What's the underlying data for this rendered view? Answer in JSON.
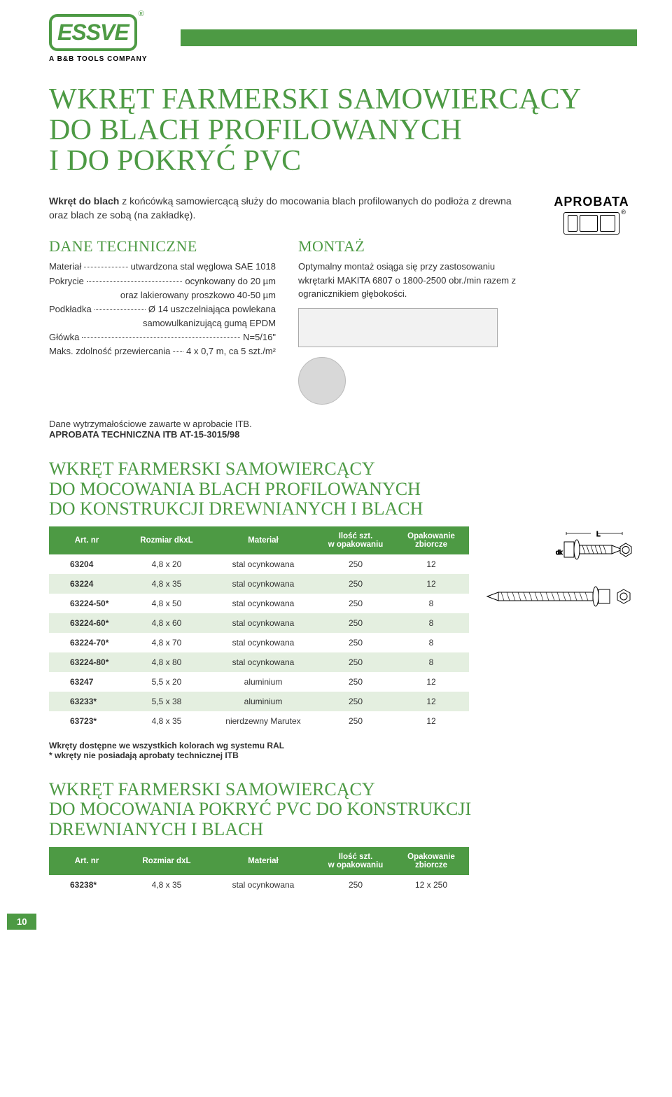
{
  "brand": {
    "logo_text": "ESSVE",
    "tagline": "A B&B TOOLS COMPANY"
  },
  "title_lines": [
    "WKRĘT FARMERSKI SAMOWIERCĄCY",
    "DO BLACH PROFILOWANYCH",
    "I DO POKRYĆ PVC"
  ],
  "approval_label": "APROBATA",
  "intro_bold": "Wkręt do blach",
  "intro_rest": " z końcówką samowiercącą służy do mocowania blach profilowanych do podłoża z drewna oraz blach ze sobą (na zakładkę).",
  "tech": {
    "title": "DANE TECHNICZNE",
    "lines": [
      {
        "key": "Materiał",
        "val": "utwardzona stal węglowa SAE 1018"
      },
      {
        "key": "Pokrycie",
        "val": "ocynkowany do 20 µm"
      },
      {
        "key": "",
        "val": "oraz lakierowany proszkowo 40-50 µm",
        "indent": true
      },
      {
        "key": "Podkładka",
        "val": "Ø 14 uszczelniająca powlekana"
      },
      {
        "key": "",
        "val": "samowulkanizującą gumą EPDM",
        "indent": true
      },
      {
        "key": "Główka",
        "val": "N=5/16\""
      },
      {
        "key": "Maks. zdolność przewiercania",
        "val": "4 x 0,7 m, ca 5 szt./m²"
      }
    ]
  },
  "montage": {
    "title": "MONTAŻ",
    "text": "Optymalny montaż osiąga się przy zastosowaniu wkrętarki MAKITA 6807 o 1800-2500 obr./min razem z ogranicznikiem głębokości."
  },
  "note_line1": "Dane wytrzymałościowe zawarte w aprobacie ITB.",
  "note_line2": "APROBATA TECHNICZNA ITB AT-15-3015/98",
  "table1": {
    "title_lines": [
      "WKRĘT FARMERSKI SAMOWIERCĄCY",
      "DO MOCOWANIA BLACH PROFILOWANYCH",
      "DO KONSTRUKCJI DREWNIANYCH I BLACH"
    ],
    "columns": [
      "Art. nr",
      "Rozmiar dkxL",
      "Materiał",
      "Ilość szt. w opakowaniu",
      "Opakowanie zbiorcze"
    ],
    "col_widths": [
      "18%",
      "20%",
      "26%",
      "18%",
      "18%"
    ],
    "rows": [
      [
        "63204",
        "4,8 x 20",
        "stal ocynkowana",
        "250",
        "12"
      ],
      [
        "63224",
        "4,8 x 35",
        "stal ocynkowana",
        "250",
        "12"
      ],
      [
        "63224-50*",
        "4,8 x 50",
        "stal ocynkowana",
        "250",
        "8"
      ],
      [
        "63224-60*",
        "4,8 x 60",
        "stal ocynkowana",
        "250",
        "8"
      ],
      [
        "63224-70*",
        "4,8 x 70",
        "stal ocynkowana",
        "250",
        "8"
      ],
      [
        "63224-80*",
        "4,8 x 80",
        "stal ocynkowana",
        "250",
        "8"
      ],
      [
        "63247",
        "5,5 x 20",
        "aluminium",
        "250",
        "12"
      ],
      [
        "63233*",
        "5,5 x 38",
        "aluminium",
        "250",
        "12"
      ],
      [
        "63723*",
        "4,8 x 35",
        "nierdzewny Marutex",
        "250",
        "12"
      ]
    ],
    "footer_lines": [
      "Wkręty dostępne we wszystkich kolorach wg systemu RAL",
      "* wkręty nie posiadają aprobaty technicznej ITB"
    ]
  },
  "table2": {
    "title_lines": [
      "WKRĘT FARMERSKI SAMOWIERCĄCY",
      "DO MOCOWANIA POKRYĆ PVC DO KONSTRUKCJI",
      "DREWNIANYCH I BLACH"
    ],
    "columns": [
      "Art. nr",
      "Rozmiar dxL",
      "Materiał",
      "Ilość szt. w opakowaniu",
      "Opakowanie zbiorcze"
    ],
    "col_widths": [
      "18%",
      "20%",
      "26%",
      "18%",
      "18%"
    ],
    "rows": [
      [
        "63238*",
        "4,8 x 35",
        "stal ocynkowana",
        "250",
        "12 x 250"
      ]
    ]
  },
  "page_number": "10",
  "colors": {
    "brand_green": "#4d9a44",
    "row_alt": "#e4efe0",
    "text": "#333333"
  }
}
